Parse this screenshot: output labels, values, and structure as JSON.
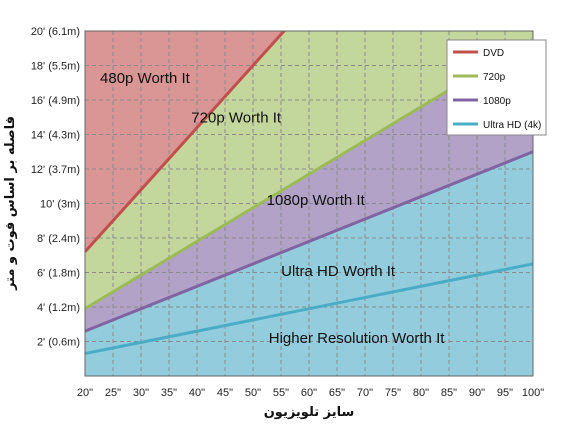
{
  "chart_data": {
    "type": "area",
    "xlabel": "سایز تلویزیون",
    "ylabel": "فاصله بر اساس فوت و متر",
    "x_ticks": [
      "20\"",
      "25\"",
      "30\"",
      "35\"",
      "40\"",
      "45\"",
      "50\"",
      "55\"",
      "60\"",
      "65\"",
      "70\"",
      "75\"",
      "80\"",
      "85\"",
      "90\"",
      "95\"",
      "100\""
    ],
    "y_ticks": [
      "2' (0.6m)",
      "4' (1.2m)",
      "6' (1.8m)",
      "8' (2.4m)",
      "10' (3m)",
      "12' (3.7m)",
      "14' (4.3m)",
      "16' (4.9m)",
      "18' (5.5m)",
      "20' (6.1m)"
    ],
    "xlim": [
      20,
      100
    ],
    "ylim": [
      0,
      20
    ],
    "grid": true,
    "legend_position": "top-right",
    "series": [
      {
        "name": "DVD",
        "color": "#c0504d",
        "fill": "#d99694",
        "x": [
          20,
          100
        ],
        "y": [
          7.2,
          36
        ]
      },
      {
        "name": "720p",
        "color": "#9bbb59",
        "fill": "#c3d69b",
        "x": [
          20,
          100
        ],
        "y": [
          3.9,
          19.5
        ]
      },
      {
        "name": "1080p",
        "color": "#8064a2",
        "fill": "#b3a2c7",
        "x": [
          20,
          100
        ],
        "y": [
          2.6,
          13
        ]
      },
      {
        "name": "Ultra HD (4k)",
        "color": "#4bacc6",
        "fill": "#93cddd",
        "x": [
          20,
          100
        ],
        "y": [
          1.3,
          6.5
        ]
      }
    ],
    "annotations": [
      {
        "text": "480p Worth It",
        "x": 30.7,
        "y": 17
      },
      {
        "text": "720p Worth It",
        "x": 47,
        "y": 14.7
      },
      {
        "text": "1080p Worth It",
        "x": 61.2,
        "y": 9.9
      },
      {
        "text": "Ultra HD Worth It",
        "x": 65.2,
        "y": 5.8
      },
      {
        "text": "Higher Resolution Worth It",
        "x": 68.5,
        "y": 1.9
      }
    ]
  }
}
